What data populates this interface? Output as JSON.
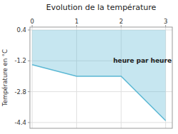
{
  "chart_data": {
    "type": "line",
    "title": "Evolution de la température",
    "y_label": "Température en °C",
    "annotations": [
      {
        "text": "heure par heure",
        "x": 1.82,
        "y": -1.05
      }
    ],
    "x": [
      0,
      1,
      2,
      3
    ],
    "values": [
      -1.4,
      -2.0,
      -2.0,
      -4.3
    ],
    "color": "#5bb8d4",
    "xlim": [
      -0.05,
      3.15
    ],
    "ylim": [
      -4.7,
      0.55
    ],
    "xticks": [
      0,
      1,
      2,
      3
    ],
    "yticks": [
      0.4,
      -1.2,
      -2.8,
      -4.4
    ],
    "grid": true
  }
}
